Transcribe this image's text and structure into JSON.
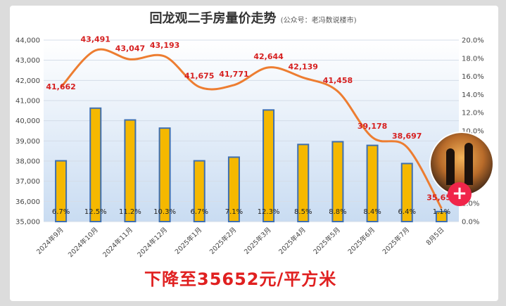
{
  "title": "回龙观二手房量价走势",
  "subtitle": "(公众号：老冯数说楼市)",
  "caption": "下降至35652元/平方米",
  "chart_data": {
    "type": "bar+line",
    "categories": [
      "2024年9月",
      "2024年10月",
      "2024年11月",
      "2024年12月",
      "2025年1月",
      "2025年2月",
      "2025年3月",
      "2025年4月",
      "2025年5月",
      "2025年6月",
      "2025年7月",
      "8月5日"
    ],
    "series": [
      {
        "values": [
          6.7,
          12.5,
          11.2,
          10.3,
          6.7,
          7.1,
          12.3,
          8.5,
          8.8,
          8.4,
          6.4,
          1.1
        ],
        "labels": [
          "6.7%",
          "12.5%",
          "11.2%",
          "10.3%",
          "6.7%",
          "7.1%",
          "12.3%",
          "8.5%",
          "8.8%",
          "8.4%",
          "6.4%",
          "1.1%"
        ],
        "color": "#f5b800",
        "axis": "right"
      },
      {
        "values": [
          41662,
          43491,
          43047,
          43193,
          41675,
          41771,
          42644,
          42139,
          41458,
          39178,
          38697,
          35652
        ],
        "labels": [
          "41,662",
          "43,491",
          "43,047",
          "43,193",
          "41,675",
          "41,771",
          "42,644",
          "42,139",
          "41,458",
          "39,178",
          "38,697",
          "35,652"
        ],
        "color": "#ed7d31",
        "axis": "left"
      }
    ],
    "y_left": {
      "min": 35000,
      "max": 44000,
      "ticks": [
        "35,000",
        "36,000",
        "37,000",
        "38,000",
        "39,000",
        "40,000",
        "41,000",
        "42,000",
        "43,000",
        "44,000"
      ]
    },
    "y_right": {
      "min": 0,
      "max": 20,
      "ticks": [
        "0.0%",
        "2.0%",
        "4.0%",
        "6.0%",
        "8.0%",
        "10.0%",
        "12.0%",
        "14.0%",
        "16.0%",
        "18.0%",
        "20.0%"
      ]
    },
    "grid": true
  }
}
